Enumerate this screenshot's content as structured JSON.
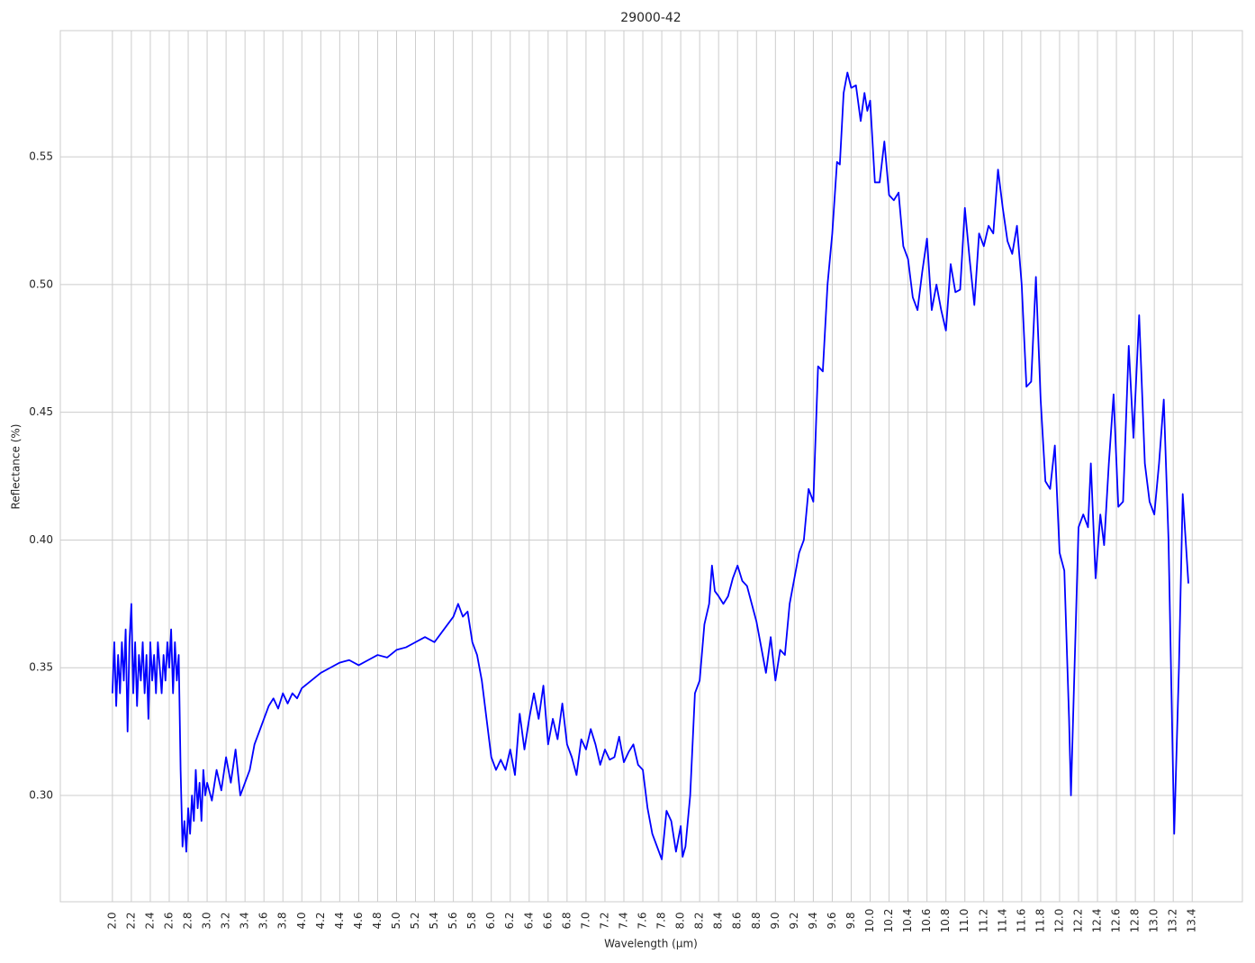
{
  "chart_data": {
    "type": "line",
    "title": "29000-42",
    "x_label": "Wavelength (μm)",
    "y_label": "Reflectance (%)",
    "color": "#0000ff",
    "grid": true,
    "xlim": [
      1.45,
      13.93
    ],
    "ylim": [
      0.2584,
      0.5994
    ],
    "xticks": [
      {
        "value": 2,
        "label": "2.0"
      },
      2.2,
      2.4,
      2.6,
      2.8,
      {
        "value": 3,
        "label": "3.0"
      },
      3.2,
      3.4,
      3.6,
      3.8,
      {
        "value": 4,
        "label": "4.0"
      },
      4.2,
      4.4,
      4.6,
      4.8,
      {
        "value": 5,
        "label": "5.0"
      },
      5.2,
      5.4,
      5.6,
      5.8,
      {
        "value": 6,
        "label": "6.0"
      },
      6.2,
      6.4,
      6.6,
      6.8,
      {
        "value": 7,
        "label": "7.0"
      },
      7.2,
      7.4,
      7.6,
      7.8,
      {
        "value": 8,
        "label": "8.0"
      },
      8.2,
      8.4,
      8.6,
      8.8,
      {
        "value": 9,
        "label": "9.0"
      },
      9.2,
      9.4,
      9.6,
      9.8,
      {
        "value": 10,
        "label": "10.0"
      },
      10.2,
      10.4,
      10.6,
      10.8,
      {
        "value": 11,
        "label": "11.0"
      },
      11.2,
      11.4,
      11.6,
      11.8,
      {
        "value": 12,
        "label": "12.0"
      },
      12.2,
      12.4,
      12.6,
      12.8,
      {
        "value": 13,
        "label": "13.0"
      },
      13.2,
      13.4
    ],
    "yticks": [
      {
        "value": 0.3,
        "label": "0.30"
      },
      0.35,
      {
        "value": 0.4,
        "label": "0.40"
      },
      0.45,
      {
        "value": 0.5,
        "label": "0.50"
      },
      0.55
    ],
    "x": [
      2.0,
      2.02,
      2.04,
      2.06,
      2.08,
      2.1,
      2.12,
      2.14,
      2.16,
      2.18,
      2.2,
      2.22,
      2.24,
      2.26,
      2.28,
      2.3,
      2.32,
      2.34,
      2.36,
      2.38,
      2.4,
      2.42,
      2.44,
      2.46,
      2.48,
      2.5,
      2.52,
      2.54,
      2.56,
      2.58,
      2.6,
      2.62,
      2.64,
      2.66,
      2.68,
      2.7,
      2.72,
      2.74,
      2.76,
      2.78,
      2.8,
      2.82,
      2.84,
      2.86,
      2.88,
      2.9,
      2.92,
      2.94,
      2.96,
      2.98,
      3.0,
      3.05,
      3.1,
      3.15,
      3.2,
      3.25,
      3.3,
      3.35,
      3.4,
      3.45,
      3.5,
      3.55,
      3.6,
      3.65,
      3.7,
      3.75,
      3.8,
      3.85,
      3.9,
      3.95,
      4.0,
      4.1,
      4.2,
      4.3,
      4.4,
      4.5,
      4.6,
      4.7,
      4.8,
      4.9,
      5.0,
      5.1,
      5.2,
      5.3,
      5.4,
      5.5,
      5.6,
      5.65,
      5.7,
      5.75,
      5.8,
      5.85,
      5.9,
      5.95,
      6.0,
      6.05,
      6.1,
      6.15,
      6.2,
      6.25,
      6.3,
      6.35,
      6.4,
      6.45,
      6.5,
      6.55,
      6.6,
      6.65,
      6.7,
      6.75,
      6.8,
      6.85,
      6.9,
      6.95,
      7.0,
      7.05,
      7.1,
      7.15,
      7.2,
      7.25,
      7.3,
      7.35,
      7.4,
      7.45,
      7.5,
      7.55,
      7.6,
      7.65,
      7.7,
      7.75,
      7.8,
      7.85,
      7.9,
      7.95,
      8.0,
      8.02,
      8.05,
      8.1,
      8.15,
      8.2,
      8.25,
      8.3,
      8.33,
      8.36,
      8.4,
      8.45,
      8.5,
      8.55,
      8.6,
      8.65,
      8.7,
      8.75,
      8.8,
      8.85,
      8.9,
      8.95,
      9.0,
      9.05,
      9.1,
      9.15,
      9.2,
      9.25,
      9.3,
      9.35,
      9.4,
      9.45,
      9.5,
      9.55,
      9.6,
      9.65,
      9.68,
      9.72,
      9.76,
      9.8,
      9.85,
      9.9,
      9.94,
      9.97,
      10.0,
      10.05,
      10.1,
      10.15,
      10.2,
      10.25,
      10.3,
      10.35,
      10.4,
      10.45,
      10.5,
      10.55,
      10.6,
      10.65,
      10.7,
      10.75,
      10.8,
      10.85,
      10.9,
      10.95,
      11.0,
      11.05,
      11.1,
      11.15,
      11.2,
      11.25,
      11.3,
      11.35,
      11.4,
      11.45,
      11.5,
      11.55,
      11.6,
      11.65,
      11.7,
      11.75,
      11.8,
      11.85,
      11.9,
      11.95,
      12.0,
      12.05,
      12.1,
      12.12,
      12.15,
      12.2,
      12.25,
      12.3,
      12.33,
      12.38,
      12.43,
      12.47,
      12.52,
      12.57,
      12.62,
      12.67,
      12.73,
      12.78,
      12.84,
      12.9,
      12.95,
      13.0,
      13.05,
      13.1,
      13.15,
      13.21,
      13.26,
      13.3,
      13.36
    ],
    "values": [
      0.34,
      0.36,
      0.335,
      0.355,
      0.34,
      0.36,
      0.345,
      0.365,
      0.325,
      0.36,
      0.375,
      0.34,
      0.36,
      0.335,
      0.355,
      0.345,
      0.36,
      0.34,
      0.355,
      0.33,
      0.36,
      0.345,
      0.355,
      0.34,
      0.36,
      0.35,
      0.34,
      0.355,
      0.345,
      0.36,
      0.35,
      0.365,
      0.34,
      0.36,
      0.345,
      0.355,
      0.31,
      0.28,
      0.29,
      0.278,
      0.295,
      0.285,
      0.3,
      0.29,
      0.31,
      0.295,
      0.305,
      0.29,
      0.31,
      0.3,
      0.305,
      0.298,
      0.31,
      0.302,
      0.315,
      0.305,
      0.318,
      0.3,
      0.305,
      0.31,
      0.32,
      0.325,
      0.33,
      0.335,
      0.338,
      0.334,
      0.34,
      0.336,
      0.34,
      0.338,
      0.342,
      0.345,
      0.348,
      0.35,
      0.352,
      0.353,
      0.351,
      0.353,
      0.355,
      0.354,
      0.357,
      0.358,
      0.36,
      0.362,
      0.36,
      0.365,
      0.37,
      0.375,
      0.37,
      0.372,
      0.36,
      0.355,
      0.345,
      0.33,
      0.315,
      0.31,
      0.314,
      0.31,
      0.318,
      0.308,
      0.332,
      0.318,
      0.33,
      0.34,
      0.33,
      0.343,
      0.32,
      0.33,
      0.322,
      0.336,
      0.32,
      0.315,
      0.308,
      0.322,
      0.318,
      0.326,
      0.32,
      0.312,
      0.318,
      0.314,
      0.315,
      0.323,
      0.313,
      0.317,
      0.32,
      0.312,
      0.31,
      0.295,
      0.285,
      0.28,
      0.275,
      0.294,
      0.29,
      0.278,
      0.288,
      0.276,
      0.28,
      0.3,
      0.34,
      0.345,
      0.367,
      0.375,
      0.39,
      0.38,
      0.378,
      0.375,
      0.378,
      0.385,
      0.39,
      0.384,
      0.382,
      0.375,
      0.368,
      0.358,
      0.348,
      0.362,
      0.345,
      0.357,
      0.355,
      0.375,
      0.385,
      0.395,
      0.4,
      0.42,
      0.415,
      0.468,
      0.466,
      0.5,
      0.52,
      0.548,
      0.547,
      0.575,
      0.583,
      0.577,
      0.578,
      0.564,
      0.575,
      0.568,
      0.572,
      0.54,
      0.54,
      0.556,
      0.535,
      0.533,
      0.536,
      0.515,
      0.51,
      0.495,
      0.49,
      0.505,
      0.518,
      0.49,
      0.5,
      0.49,
      0.482,
      0.508,
      0.497,
      0.498,
      0.53,
      0.51,
      0.492,
      0.52,
      0.515,
      0.523,
      0.52,
      0.545,
      0.53,
      0.517,
      0.512,
      0.523,
      0.5,
      0.46,
      0.462,
      0.503,
      0.455,
      0.423,
      0.42,
      0.437,
      0.395,
      0.388,
      0.33,
      0.3,
      0.34,
      0.405,
      0.41,
      0.405,
      0.43,
      0.385,
      0.41,
      0.398,
      0.43,
      0.457,
      0.413,
      0.415,
      0.476,
      0.44,
      0.488,
      0.43,
      0.415,
      0.41,
      0.43,
      0.455,
      0.4,
      0.285,
      0.35,
      0.418,
      0.383
    ]
  }
}
